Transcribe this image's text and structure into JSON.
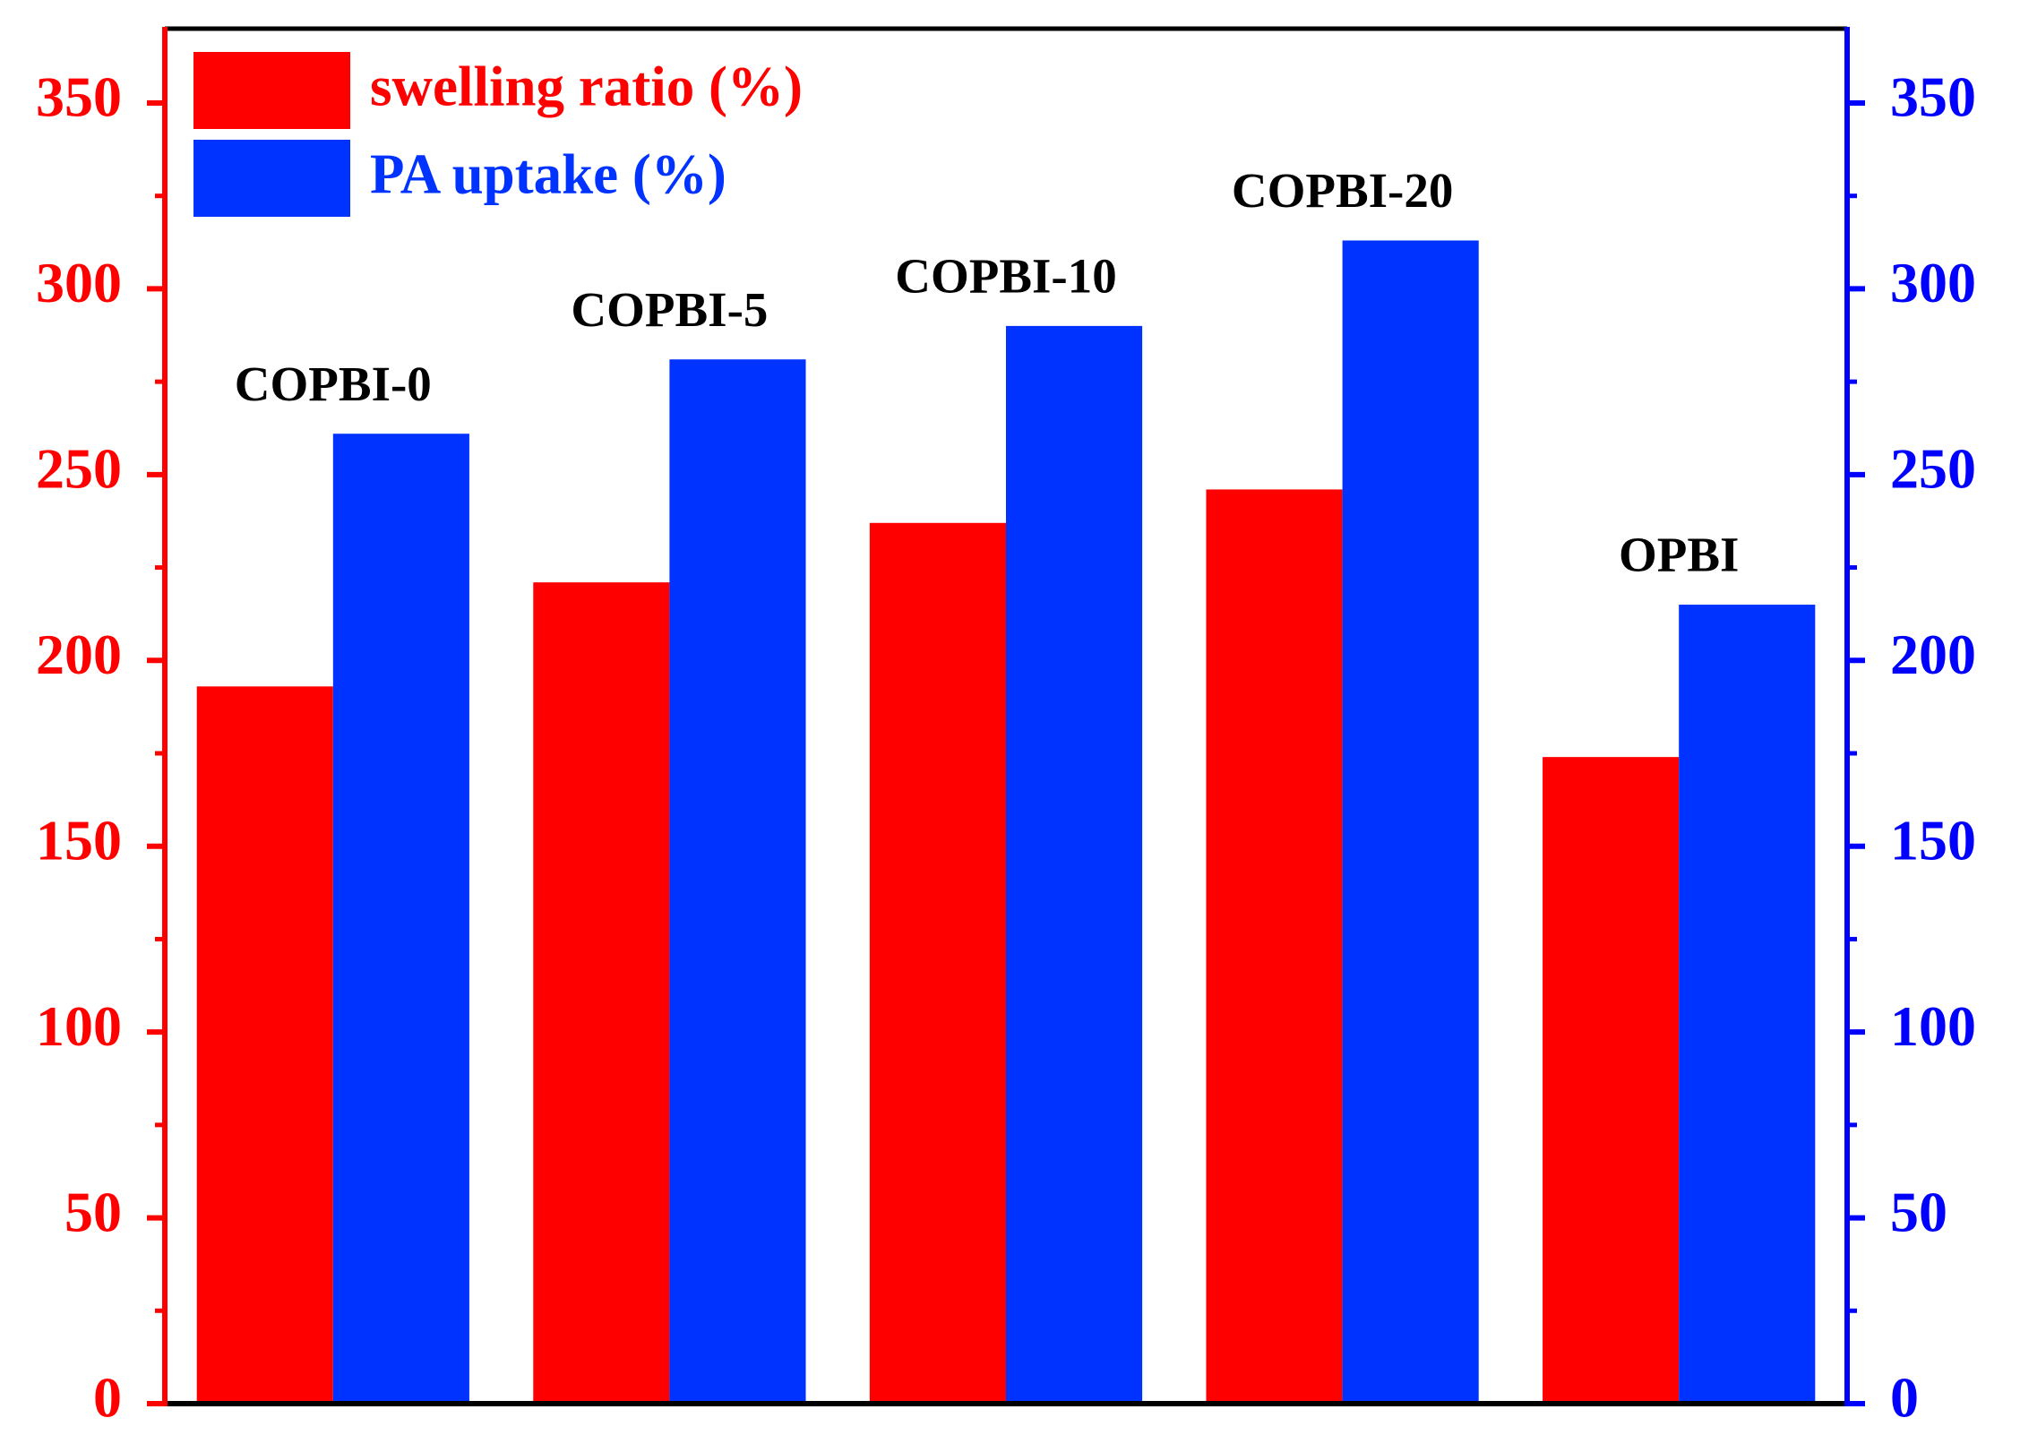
{
  "chart_data": {
    "type": "bar",
    "categories": [
      "COPBI-0",
      "COPBI-5",
      "COPBI-10",
      "COPBI-20",
      "OPBI"
    ],
    "series": [
      {
        "name": "swelling ratio (%)",
        "color": "#ff0000",
        "values": [
          193,
          221,
          237,
          246,
          174
        ]
      },
      {
        "name": "PA uptake (%)",
        "color": "#0033ff",
        "axis": "y2",
        "values": [
          261,
          281,
          290,
          313,
          215
        ]
      }
    ],
    "ylim": [
      0,
      370
    ],
    "yticks": [
      0,
      50,
      100,
      150,
      200,
      250,
      300,
      350
    ],
    "y2lim": [
      0,
      370
    ],
    "y2ticks": [
      0,
      50,
      100,
      150,
      200,
      250,
      300,
      350
    ],
    "minor_yticks": [
      25,
      75,
      125,
      175,
      225,
      275,
      325
    ],
    "ycolor": "#ff0000",
    "y2color": "#0000ff",
    "legend": "upper left"
  }
}
